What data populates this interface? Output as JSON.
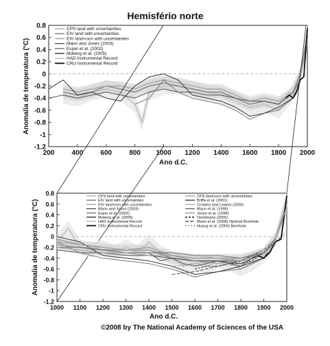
{
  "chart_data": [
    {
      "type": "line",
      "title": "Hemisfério norte",
      "xlabel": "Ano d.C.",
      "ylabel": "Anomalia de temperatura (°C)",
      "xlim": [
        200,
        2000
      ],
      "ylim": [
        -1.2,
        0.8
      ],
      "x_ticks": [
        "200",
        "400",
        "600",
        "800",
        "1000",
        "1200",
        "1400",
        "1600",
        "1800",
        "2000"
      ],
      "y_ticks": [
        "0.8",
        "0.6",
        "0.4",
        "0.2",
        "0",
        "-0.2",
        "-0.4",
        "-0.6",
        "-0.8",
        "-1",
        "-1.2"
      ],
      "legend": [
        "CPS land with uncertainties",
        "EIV land with uncertainties",
        "EIV land+ocn with uncertainties",
        "Mann and Jones (2003)",
        "Esper et al. (2002)",
        "Moberg et al. (2005)",
        "HAD Instrumental Record",
        "CRU Instrumental Record"
      ],
      "legend_position": "top-left",
      "series": [
        {
          "name": "CPS land with uncertainties",
          "x": [
            300,
            400,
            500,
            600,
            700,
            800,
            850,
            900,
            1000,
            1100,
            1200,
            1300,
            1400,
            1500,
            1600,
            1700,
            1800,
            1850,
            1900,
            1950,
            2000
          ],
          "y": [
            -0.35,
            -0.4,
            -0.3,
            -0.25,
            -0.3,
            -0.5,
            -0.8,
            -0.3,
            -0.2,
            -0.2,
            -0.25,
            -0.3,
            -0.35,
            -0.45,
            -0.55,
            -0.5,
            -0.6,
            -0.45,
            -0.3,
            -0.05,
            0.7
          ]
        },
        {
          "name": "EIV land with uncertainties",
          "x": [
            300,
            400,
            500,
            600,
            700,
            800,
            900,
            1000,
            1100,
            1200,
            1300,
            1400,
            1500,
            1600,
            1700,
            1800,
            1900,
            1950,
            2000
          ],
          "y": [
            -0.3,
            -0.35,
            -0.3,
            -0.2,
            -0.25,
            -0.3,
            -0.2,
            -0.15,
            -0.2,
            -0.25,
            -0.3,
            -0.3,
            -0.4,
            -0.5,
            -0.45,
            -0.5,
            -0.3,
            0.0,
            0.6
          ]
        },
        {
          "name": "EIV land+ocn with uncertainties",
          "x": [
            300,
            400,
            500,
            600,
            700,
            800,
            900,
            1000,
            1100,
            1200,
            1300,
            1400,
            1500,
            1600,
            1700,
            1800,
            1900,
            1950,
            2000
          ],
          "y": [
            -0.25,
            -0.3,
            -0.25,
            -0.2,
            -0.2,
            -0.25,
            -0.15,
            -0.1,
            -0.15,
            -0.2,
            -0.25,
            -0.25,
            -0.35,
            -0.45,
            -0.4,
            -0.45,
            -0.3,
            -0.05,
            0.5
          ]
        },
        {
          "name": "Mann and Jones (2003)",
          "x": [
            200,
            300,
            400,
            500,
            600,
            700,
            800,
            900,
            1000,
            1100,
            1200,
            1300,
            1400,
            1500,
            1600,
            1700,
            1800,
            1900,
            1950
          ],
          "y": [
            -0.4,
            -0.35,
            -0.4,
            -0.35,
            -0.3,
            -0.35,
            -0.4,
            -0.3,
            -0.25,
            -0.3,
            -0.3,
            -0.35,
            -0.35,
            -0.4,
            -0.45,
            -0.45,
            -0.5,
            -0.3,
            -0.1
          ]
        },
        {
          "name": "Esper et al. (2002)",
          "x": [
            800,
            900,
            1000,
            1100,
            1200,
            1300,
            1400,
            1500,
            1600,
            1700,
            1800,
            1900,
            1950
          ],
          "y": [
            -0.5,
            -0.4,
            -0.1,
            -0.3,
            -0.4,
            -0.45,
            -0.5,
            -0.6,
            -0.75,
            -0.65,
            -0.6,
            -0.4,
            -0.1
          ]
        },
        {
          "name": "Moberg et al. (2005)",
          "x": [
            200,
            300,
            400,
            500,
            600,
            700,
            800,
            900,
            1000,
            1100,
            1200,
            1300,
            1400,
            1500,
            1600,
            1700,
            1800,
            1900,
            1950
          ],
          "y": [
            -0.25,
            -0.1,
            -0.35,
            -0.3,
            -0.4,
            -0.45,
            -0.2,
            -0.05,
            0.0,
            -0.1,
            -0.35,
            -0.4,
            -0.45,
            -0.55,
            -0.7,
            -0.65,
            -0.55,
            -0.4,
            -0.1
          ]
        },
        {
          "name": "HAD Instrumental Record",
          "x": [
            1850,
            1875,
            1900,
            1925,
            1950,
            1975,
            2000
          ],
          "y": [
            -0.35,
            -0.3,
            -0.35,
            -0.25,
            -0.1,
            -0.05,
            0.6
          ]
        },
        {
          "name": "CRU Instrumental Record",
          "x": [
            1850,
            1875,
            1900,
            1925,
            1950,
            1975,
            2000
          ],
          "y": [
            -0.4,
            -0.35,
            -0.4,
            -0.3,
            -0.1,
            -0.05,
            0.75
          ]
        }
      ]
    },
    {
      "type": "line",
      "title": "",
      "xlabel": "Ano d.C.",
      "ylabel": "Anomalia de temperatura (°C)",
      "xlim": [
        1000,
        2000
      ],
      "ylim": [
        -1.2,
        0.8
      ],
      "x_ticks": [
        "1000",
        "1100",
        "1200",
        "1300",
        "1400",
        "1500",
        "1600",
        "1700",
        "1800",
        "1900",
        "2000"
      ],
      "y_ticks": [
        "0.8",
        "0.6",
        "0.4",
        "0.2",
        "0",
        "-0.2",
        "-0.4",
        "-0.6",
        "-0.8",
        "-1",
        "-1.2"
      ],
      "legend": [
        "CPS land with uncertainties",
        "EIV land with uncertainties",
        "EIV land+ocn with uncertainties",
        "Mann and Jones (2003)",
        "Esper et al. (2002)",
        "Moberg et al. (2005)",
        "HAD Instrumental Record",
        "CRU Instrumental Record",
        "CPS land+ocn with uncertainties",
        "Briffa et al. (2001)",
        "Crowley and Lowery (2000)",
        "Mann et al. (1999)",
        "Jones et al. (1998)",
        "Oerlemans (2005)",
        "Mann et al. (2008) Optimal Borehole",
        "Huang et al. (2000) Borehole"
      ],
      "legend_position": "top",
      "series": [
        {
          "name": "CPS land with uncertainties",
          "x": [
            1000,
            1050,
            1100,
            1150,
            1200,
            1250,
            1300,
            1350,
            1400,
            1450,
            1500,
            1550,
            1600,
            1650,
            1700,
            1750,
            1800,
            1850,
            1900,
            1950,
            2000
          ],
          "y": [
            -0.1,
            0.15,
            -0.2,
            -0.25,
            -0.2,
            -0.3,
            -0.2,
            -0.3,
            -0.1,
            -0.3,
            -0.4,
            -0.55,
            -0.5,
            -0.55,
            -0.45,
            -0.5,
            -0.6,
            -0.5,
            -0.35,
            -0.05,
            0.7
          ]
        },
        {
          "name": "EIV land with uncertainties",
          "x": [
            1000,
            1100,
            1200,
            1300,
            1400,
            1500,
            1600,
            1700,
            1800,
            1900,
            1950,
            2000
          ],
          "y": [
            -0.15,
            -0.2,
            -0.25,
            -0.25,
            -0.25,
            -0.4,
            -0.45,
            -0.45,
            -0.45,
            -0.3,
            -0.05,
            0.6
          ]
        },
        {
          "name": "EIV land+ocn with uncertainties",
          "x": [
            1000,
            1100,
            1200,
            1300,
            1400,
            1500,
            1600,
            1700,
            1800,
            1900,
            1950,
            2000
          ],
          "y": [
            -0.1,
            -0.15,
            -0.2,
            -0.25,
            -0.25,
            -0.35,
            -0.4,
            -0.4,
            -0.4,
            -0.3,
            -0.05,
            0.5
          ]
        },
        {
          "name": "Mann and Jones (2003)",
          "x": [
            1000,
            1100,
            1200,
            1300,
            1400,
            1500,
            1600,
            1700,
            1800,
            1900,
            1950
          ],
          "y": [
            -0.25,
            -0.3,
            -0.3,
            -0.35,
            -0.35,
            -0.4,
            -0.45,
            -0.45,
            -0.5,
            -0.3,
            -0.1
          ]
        },
        {
          "name": "Esper et al. (2002)",
          "x": [
            1000,
            1100,
            1200,
            1300,
            1400,
            1500,
            1600,
            1700,
            1800,
            1900,
            1950
          ],
          "y": [
            -0.1,
            -0.3,
            -0.4,
            -0.45,
            -0.5,
            -0.6,
            -0.75,
            -0.65,
            -0.6,
            -0.4,
            -0.1
          ]
        },
        {
          "name": "Moberg et al. (2005)",
          "x": [
            1000,
            1100,
            1200,
            1300,
            1400,
            1500,
            1600,
            1700,
            1800,
            1900,
            1950
          ],
          "y": [
            0.0,
            -0.1,
            -0.35,
            -0.4,
            -0.45,
            -0.55,
            -0.7,
            -0.65,
            -0.55,
            -0.4,
            -0.1
          ]
        },
        {
          "name": "HAD Instrumental Record",
          "x": [
            1850,
            1875,
            1900,
            1925,
            1950,
            1975,
            2000
          ],
          "y": [
            -0.35,
            -0.3,
            -0.35,
            -0.25,
            -0.1,
            -0.05,
            0.6
          ]
        },
        {
          "name": "CRU Instrumental Record",
          "x": [
            1850,
            1875,
            1900,
            1925,
            1950,
            1975,
            2000
          ],
          "y": [
            -0.4,
            -0.35,
            -0.4,
            -0.3,
            -0.1,
            -0.05,
            0.75
          ]
        },
        {
          "name": "CPS land+ocn with uncertainties",
          "x": [
            1000,
            1100,
            1200,
            1300,
            1400,
            1500,
            1600,
            1700,
            1800,
            1900,
            1950,
            2000
          ],
          "y": [
            -0.05,
            -0.15,
            -0.2,
            -0.25,
            -0.2,
            -0.35,
            -0.4,
            -0.4,
            -0.45,
            -0.3,
            -0.05,
            0.55
          ]
        },
        {
          "name": "Briffa et al. (2001)",
          "x": [
            1400,
            1450,
            1500,
            1550,
            1600,
            1650,
            1700,
            1750,
            1800,
            1850,
            1900,
            1950
          ],
          "y": [
            -0.3,
            -0.45,
            -0.4,
            -0.5,
            -0.55,
            -0.5,
            -0.45,
            -0.5,
            -0.55,
            -0.4,
            -0.3,
            -0.1
          ]
        },
        {
          "name": "Crowley and Lowery (2000)",
          "x": [
            1000,
            1100,
            1200,
            1300,
            1400,
            1500,
            1600,
            1700,
            1800,
            1900,
            1950
          ],
          "y": [
            -0.15,
            -0.2,
            -0.2,
            -0.25,
            -0.3,
            -0.3,
            -0.35,
            -0.4,
            -0.4,
            -0.3,
            -0.1
          ]
        },
        {
          "name": "Mann et al. (1999)",
          "x": [
            1000,
            1100,
            1200,
            1300,
            1400,
            1500,
            1600,
            1700,
            1800,
            1900,
            1950
          ],
          "y": [
            -0.2,
            -0.2,
            -0.25,
            -0.3,
            -0.3,
            -0.3,
            -0.35,
            -0.35,
            -0.4,
            -0.3,
            -0.1
          ]
        },
        {
          "name": "Jones et al. (1998)",
          "x": [
            1000,
            1100,
            1200,
            1300,
            1400,
            1500,
            1600,
            1700,
            1800,
            1900,
            1950
          ],
          "y": [
            -0.2,
            -0.25,
            -0.3,
            -0.3,
            -0.35,
            -0.35,
            -0.45,
            -0.5,
            -0.45,
            -0.3,
            -0.1
          ]
        },
        {
          "name": "Oerlemans (2005)",
          "x": [
            1600,
            1650,
            1700,
            1750,
            1800,
            1850,
            1900,
            1950,
            1990
          ],
          "y": [
            -0.6,
            -0.55,
            -0.55,
            -0.5,
            -0.5,
            -0.45,
            -0.3,
            -0.1,
            0.05
          ]
        },
        {
          "name": "Mann et al. (2008) Optimal Borehole",
          "x": [
            1500,
            1600,
            1700,
            1800,
            1900,
            1950
          ],
          "y": [
            -0.7,
            -0.65,
            -0.55,
            -0.45,
            -0.25,
            -0.05
          ]
        },
        {
          "name": "Huang et al. (2000) Borehole",
          "x": [
            1500,
            1600,
            1700,
            1800,
            1900,
            1950
          ],
          "y": [
            -0.55,
            -0.5,
            -0.45,
            -0.4,
            -0.25,
            -0.05
          ]
        }
      ]
    }
  ],
  "credit": "©2008 by The National Academy of Sciences of the USA"
}
